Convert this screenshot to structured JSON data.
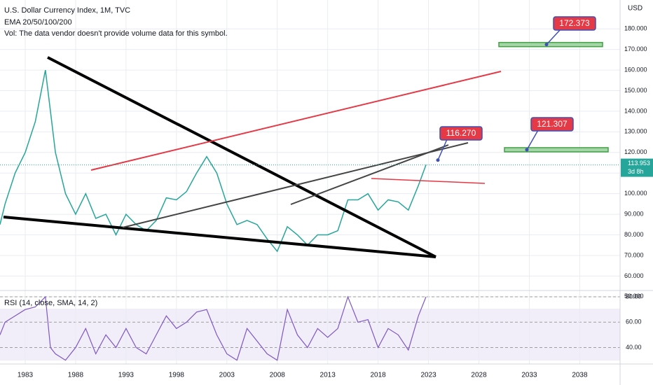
{
  "chart_data": {
    "type": "line",
    "title": "U.S. Dollar Currency Index, 1M, TVC",
    "indicator": "EMA 20/50/100/200",
    "volume_note": "Vol: The data vendor doesn't provide volume data for this symbol.",
    "y_axis_label": "USD",
    "last_price": 113.953,
    "countdown": "3d 8h",
    "x": [
      1980.5,
      1981,
      1982,
      1983,
      1984,
      1985,
      1985.5,
      1986,
      1987,
      1988,
      1989,
      1990,
      1991,
      1992,
      1993,
      1994,
      1995,
      1996,
      1997,
      1998,
      1999,
      2000,
      2001,
      2002,
      2003,
      2004,
      2005,
      2006,
      2007,
      2008,
      2009,
      2010,
      2011,
      2012,
      2013,
      2014,
      2015,
      2016,
      2017,
      2018,
      2019,
      2020,
      2021,
      2022,
      2022.75
    ],
    "series": [
      {
        "name": "DXY",
        "color": "#26a69a",
        "values": [
          85,
          95,
          110,
          120,
          135,
          160,
          140,
          120,
          100,
          90,
          100,
          88,
          90,
          80,
          90,
          85,
          82,
          87,
          98,
          97,
          101,
          110,
          118,
          110,
          95,
          85,
          87,
          85,
          78,
          72,
          84,
          80,
          75,
          80,
          80,
          82,
          97,
          97,
          100,
          92,
          97,
          96,
          92,
          104,
          114
        ]
      }
    ],
    "xlim": [
      1980.5,
      2042
    ],
    "xticks": [
      1983,
      1988,
      1993,
      1998,
      2003,
      2008,
      2013,
      2018,
      2023,
      2028,
      2033,
      2038
    ],
    "ylim": [
      53,
      194
    ],
    "yticks": [
      {
        "value": 50,
        "label": "50.000"
      },
      {
        "value": 60,
        "label": "60.000"
      },
      {
        "value": 70,
        "label": "70.000"
      },
      {
        "value": 80,
        "label": "80.000"
      },
      {
        "value": 90,
        "label": "90.000"
      },
      {
        "value": 100,
        "label": "100.000"
      },
      {
        "value": 110,
        "label": "110.000"
      },
      {
        "value": 120,
        "label": "120.000"
      },
      {
        "value": 130,
        "label": "130.000"
      },
      {
        "value": 140,
        "label": "140.000"
      },
      {
        "value": 150,
        "label": "150.000"
      },
      {
        "value": 160,
        "label": "160.000"
      },
      {
        "value": 170,
        "label": "170.000"
      },
      {
        "value": 180,
        "label": "180.000"
      }
    ],
    "annotations": [
      172.373,
      116.27,
      121.307
    ],
    "annotation_labels": [
      "172.373",
      "116.270",
      "121.307"
    ],
    "rsi": {
      "title": "RSI (14, close, SMA, 14, 2)",
      "color": "#7e57c2",
      "values": [
        50,
        60,
        65,
        70,
        72,
        80,
        40,
        35,
        30,
        40,
        55,
        35,
        50,
        40,
        55,
        40,
        35,
        50,
        65,
        55,
        60,
        68,
        70,
        50,
        35,
        30,
        55,
        45,
        35,
        30,
        70,
        50,
        40,
        55,
        48,
        55,
        80,
        60,
        62,
        40,
        55,
        50,
        38,
        65,
        80
      ],
      "ylim": [
        27,
        85
      ],
      "yticks": [
        {
          "value": 40,
          "label": "40.00"
        },
        {
          "value": 60,
          "label": "60.00"
        },
        {
          "value": 80,
          "label": "80.00"
        }
      ]
    },
    "grid": true
  }
}
